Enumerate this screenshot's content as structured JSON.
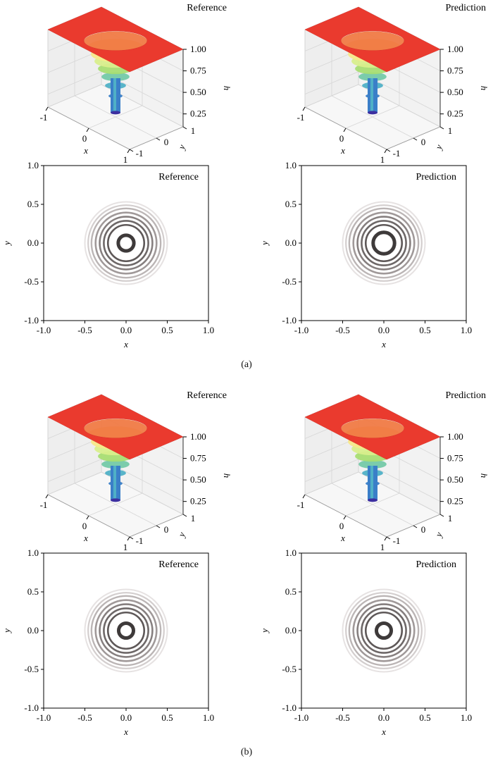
{
  "chart_data": [
    {
      "panel": "a",
      "type": "surface3d",
      "title": "Reference",
      "xlabel": "x",
      "ylabel": "y",
      "zlabel": "h",
      "xticks": [
        "-1",
        "0",
        "1"
      ],
      "yticks": [
        "-1",
        "0",
        "1"
      ],
      "zticks": [
        "0.25",
        "0.50",
        "0.75",
        "1.00"
      ],
      "xlim": [
        -1,
        1
      ],
      "ylim": [
        -1,
        1
      ],
      "zlim": [
        0.1,
        1.0
      ],
      "depression_min_h": 0.15,
      "depression_radius": 0.55,
      "colormap": "spectral",
      "colors": {
        "plateau": "#ea3a2e",
        "mid": "#a8dd72",
        "low": "#3b8bd0",
        "pane": "#ececec"
      }
    },
    {
      "panel": "a",
      "type": "surface3d",
      "title": "Prediction",
      "xlabel": "x",
      "ylabel": "y",
      "zlabel": "h",
      "xticks": [
        "-1",
        "0",
        "1"
      ],
      "yticks": [
        "-1",
        "0",
        "1"
      ],
      "zticks": [
        "0.25",
        "0.50",
        "0.75",
        "1.00"
      ],
      "xlim": [
        -1,
        1
      ],
      "ylim": [
        -1,
        1
      ],
      "zlim": [
        0.1,
        1.0
      ],
      "depression_min_h": 0.15,
      "depression_radius": 0.55,
      "colormap": "spectral"
    },
    {
      "panel": "a",
      "type": "contour",
      "title": "Reference",
      "xlabel": "x",
      "ylabel": "y",
      "xticks": [
        "-1.0",
        "-0.5",
        "0.0",
        "0.5",
        "1.0"
      ],
      "yticks": [
        "1.0",
        "0.5",
        "0.0",
        "-0.5",
        "-1.0"
      ],
      "xlim": [
        -1,
        1
      ],
      "ylim": [
        -1,
        1
      ],
      "contour_radii": [
        0.095,
        0.22,
        0.27,
        0.32,
        0.37,
        0.42,
        0.46,
        0.5
      ],
      "center": [
        0.0,
        0.0
      ],
      "colors": {
        "dark": "#4a4646",
        "light": "#e6e2e2"
      }
    },
    {
      "panel": "a",
      "type": "contour",
      "title": "Prediction",
      "xlabel": "x",
      "ylabel": "y",
      "xticks": [
        "-1.0",
        "-0.5",
        "0.0",
        "0.5",
        "1.0"
      ],
      "yticks": [
        "1.0",
        "0.5",
        "0.0",
        "-0.5",
        "-1.0"
      ],
      "xlim": [
        -1,
        1
      ],
      "ylim": [
        -1,
        1
      ],
      "contour_radii": [
        0.13,
        0.22,
        0.27,
        0.32,
        0.37,
        0.42,
        0.46,
        0.5
      ],
      "center": [
        0.0,
        0.0
      ]
    },
    {
      "panel": "b",
      "type": "surface3d",
      "title": "Reference",
      "xlabel": "x",
      "ylabel": "y",
      "zlabel": "h",
      "xticks": [
        "-1",
        "0",
        "1"
      ],
      "yticks": [
        "-1",
        "0",
        "1"
      ],
      "zticks": [
        "0.25",
        "0.50",
        "0.75",
        "1.00"
      ],
      "xlim": [
        -1,
        1
      ],
      "ylim": [
        -1,
        1
      ],
      "zlim": [
        0.1,
        1.0
      ],
      "depression_min_h": 0.15,
      "depression_radius": 0.55,
      "colormap": "spectral"
    },
    {
      "panel": "b",
      "type": "surface3d",
      "title": "Prediction",
      "xlabel": "x",
      "ylabel": "y",
      "zlabel": "h",
      "xticks": [
        "-1",
        "0",
        "1"
      ],
      "yticks": [
        "-1",
        "0",
        "1"
      ],
      "zticks": [
        "0.25",
        "0.50",
        "0.75",
        "1.00"
      ],
      "xlim": [
        -1,
        1
      ],
      "ylim": [
        -1,
        1
      ],
      "zlim": [
        0.1,
        1.0
      ],
      "depression_min_h": 0.15,
      "depression_radius": 0.55,
      "colormap": "spectral"
    },
    {
      "panel": "b",
      "type": "contour",
      "title": "Reference",
      "xlabel": "x",
      "ylabel": "y",
      "xticks": [
        "-1.0",
        "-0.5",
        "0.0",
        "0.5",
        "1.0"
      ],
      "yticks": [
        "1.0",
        "0.5",
        "0.0",
        "-0.5",
        "-1.0"
      ],
      "xlim": [
        -1,
        1
      ],
      "ylim": [
        -1,
        1
      ],
      "contour_radii": [
        0.09,
        0.22,
        0.27,
        0.32,
        0.37,
        0.42,
        0.46,
        0.5
      ],
      "center": [
        0.0,
        0.0
      ]
    },
    {
      "panel": "b",
      "type": "contour",
      "title": "Prediction",
      "xlabel": "x",
      "ylabel": "y",
      "xticks": [
        "-1.0",
        "-0.5",
        "0.0",
        "0.5",
        "1.0"
      ],
      "yticks": [
        "1.0",
        "0.5",
        "0.0",
        "-0.5",
        "-1.0"
      ],
      "xlim": [
        -1,
        1
      ],
      "ylim": [
        -1,
        1
      ],
      "contour_radii": [
        0.09,
        0.22,
        0.27,
        0.32,
        0.37,
        0.42,
        0.46,
        0.5
      ],
      "center": [
        0.0,
        0.0
      ]
    }
  ],
  "captions": {
    "a": "(a)",
    "b": "(b)"
  }
}
